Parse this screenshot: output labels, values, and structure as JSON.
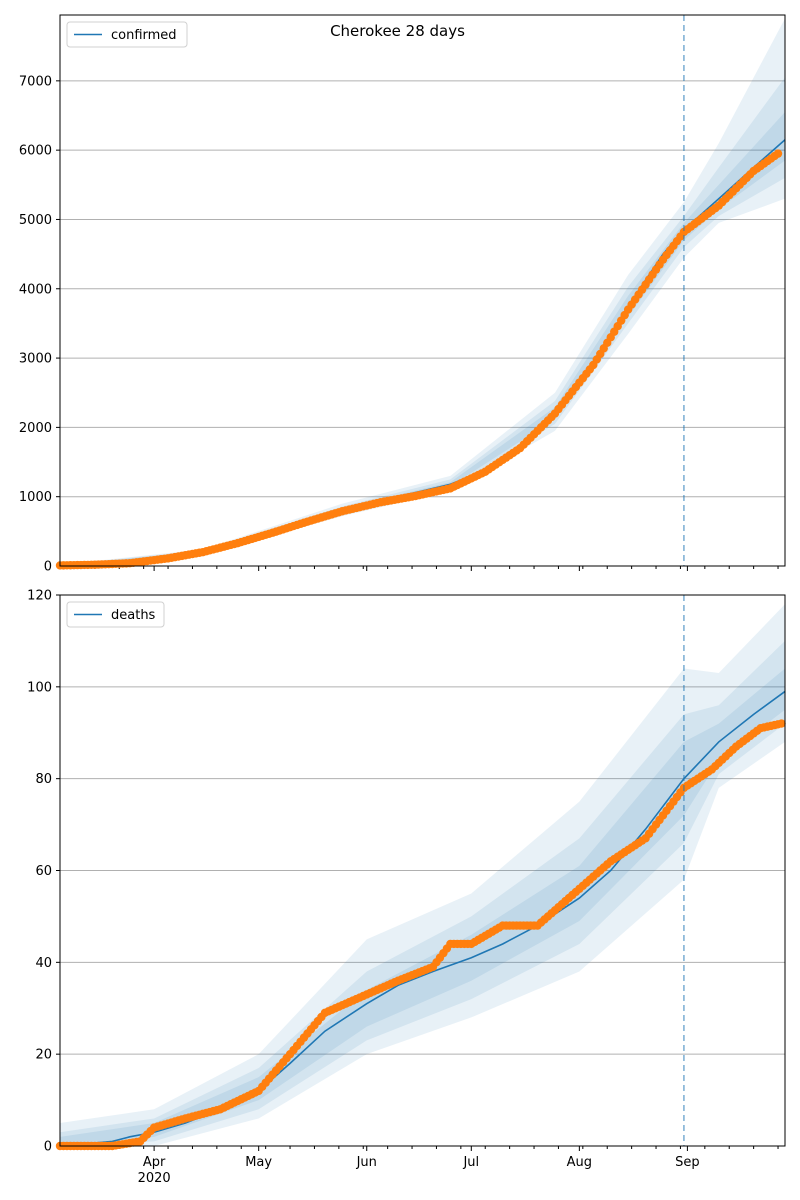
{
  "chart_data": [
    {
      "type": "line",
      "title": "Cherokee 28 days",
      "legend": {
        "label": "confirmed",
        "placement": "upper-left"
      },
      "ylim": [
        0,
        7950
      ],
      "yticks": [
        0,
        1000,
        2000,
        3000,
        4000,
        5000,
        6000,
        7000
      ],
      "xlim": [
        "2020-03-05",
        "2020-09-29"
      ],
      "xtick_labels": [],
      "forecast_start": "2020-08-31",
      "grid": "y",
      "colors": {
        "line": "#1f77b4",
        "observed": "#ff7f0e",
        "band": "#1f77b4"
      },
      "series": [
        {
          "name": "confirmed",
          "kind": "model",
          "x": [
            "2020-03-05",
            "2020-03-15",
            "2020-03-25",
            "2020-04-05",
            "2020-04-15",
            "2020-04-25",
            "2020-05-05",
            "2020-05-15",
            "2020-05-25",
            "2020-06-05",
            "2020-06-15",
            "2020-06-25",
            "2020-07-05",
            "2020-07-15",
            "2020-07-25",
            "2020-08-05",
            "2020-08-15",
            "2020-08-25",
            "2020-08-31",
            "2020-09-10",
            "2020-09-20",
            "2020-09-29"
          ],
          "y": [
            5,
            15,
            40,
            110,
            200,
            320,
            470,
            640,
            810,
            950,
            1060,
            1180,
            1380,
            1720,
            2200,
            2950,
            3750,
            4500,
            4850,
            5300,
            5750,
            6150
          ]
        },
        {
          "name": "observed",
          "kind": "points",
          "x": [
            "2020-03-05",
            "2020-03-15",
            "2020-03-25",
            "2020-04-05",
            "2020-04-15",
            "2020-04-25",
            "2020-05-05",
            "2020-05-15",
            "2020-05-25",
            "2020-06-05",
            "2020-06-15",
            "2020-06-25",
            "2020-07-05",
            "2020-07-15",
            "2020-07-25",
            "2020-08-05",
            "2020-08-15",
            "2020-08-25",
            "2020-08-31",
            "2020-09-10",
            "2020-09-20",
            "2020-09-27"
          ],
          "y": [
            8,
            18,
            40,
            110,
            200,
            330,
            480,
            640,
            790,
            920,
            1010,
            1120,
            1360,
            1700,
            2200,
            2900,
            3700,
            4420,
            4820,
            5200,
            5700,
            5950
          ]
        }
      ],
      "bands": [
        {
          "x": [
            "2020-03-05",
            "2020-04-15",
            "2020-05-25",
            "2020-06-25",
            "2020-07-25",
            "2020-08-15",
            "2020-08-31",
            "2020-09-10",
            "2020-09-29"
          ],
          "lower": [
            0,
            160,
            720,
            1080,
            1950,
            3350,
            4450,
            4950,
            5300
          ],
          "upper": [
            20,
            240,
            900,
            1300,
            2500,
            4200,
            5250,
            6100,
            7900
          ]
        },
        {
          "x": [
            "2020-03-05",
            "2020-04-15",
            "2020-05-25",
            "2020-06-25",
            "2020-07-25",
            "2020-08-15",
            "2020-08-31",
            "2020-09-10",
            "2020-09-29"
          ],
          "lower": [
            2,
            175,
            760,
            1120,
            2050,
            3500,
            4600,
            5050,
            5600
          ],
          "upper": [
            14,
            225,
            860,
            1250,
            2380,
            4030,
            5050,
            5750,
            7050
          ]
        },
        {
          "x": [
            "2020-03-05",
            "2020-04-15",
            "2020-05-25",
            "2020-06-25",
            "2020-07-25",
            "2020-08-15",
            "2020-08-31",
            "2020-09-10",
            "2020-09-29"
          ],
          "lower": [
            4,
            185,
            785,
            1150,
            2120,
            3600,
            4700,
            5150,
            5850
          ],
          "upper": [
            9,
            215,
            835,
            1210,
            2290,
            3900,
            4950,
            5500,
            6550
          ]
        }
      ]
    },
    {
      "type": "line",
      "title": "",
      "legend": {
        "label": "deaths",
        "placement": "upper-left"
      },
      "ylim": [
        0,
        120
      ],
      "yticks": [
        0,
        20,
        40,
        60,
        80,
        100,
        120
      ],
      "xlim": [
        "2020-03-05",
        "2020-09-29"
      ],
      "xtick_labels": [
        {
          "date": "2020-04-01",
          "label": "Apr",
          "sublabel": "2020"
        },
        {
          "date": "2020-05-01",
          "label": "May"
        },
        {
          "date": "2020-06-01",
          "label": "Jun"
        },
        {
          "date": "2020-07-01",
          "label": "Jul"
        },
        {
          "date": "2020-08-01",
          "label": "Aug"
        },
        {
          "date": "2020-09-01",
          "label": "Sep"
        }
      ],
      "forecast_start": "2020-08-31",
      "grid": "y",
      "colors": {
        "line": "#1f77b4",
        "observed": "#ff7f0e",
        "band": "#1f77b4"
      },
      "series": [
        {
          "name": "deaths",
          "kind": "model",
          "x": [
            "2020-03-05",
            "2020-03-20",
            "2020-03-25",
            "2020-04-01",
            "2020-04-10",
            "2020-04-20",
            "2020-05-01",
            "2020-05-10",
            "2020-05-20",
            "2020-06-01",
            "2020-06-10",
            "2020-06-20",
            "2020-07-01",
            "2020-07-10",
            "2020-07-20",
            "2020-08-01",
            "2020-08-10",
            "2020-08-20",
            "2020-08-31",
            "2020-09-10",
            "2020-09-20",
            "2020-09-29"
          ],
          "y": [
            0,
            1,
            2,
            3,
            5,
            8,
            12,
            18,
            25,
            31,
            35,
            38,
            41,
            44,
            48,
            54,
            60,
            69,
            80,
            88,
            94,
            99
          ]
        },
        {
          "name": "observed",
          "kind": "points",
          "x": [
            "2020-03-05",
            "2020-03-20",
            "2020-03-28",
            "2020-04-01",
            "2020-04-10",
            "2020-04-20",
            "2020-05-01",
            "2020-05-10",
            "2020-05-20",
            "2020-06-01",
            "2020-06-10",
            "2020-06-20",
            "2020-06-25",
            "2020-07-01",
            "2020-07-10",
            "2020-07-20",
            "2020-08-01",
            "2020-08-10",
            "2020-08-20",
            "2020-08-25",
            "2020-08-31",
            "2020-09-08",
            "2020-09-15",
            "2020-09-22",
            "2020-09-28"
          ],
          "y": [
            0,
            0,
            1,
            4,
            6,
            8,
            12,
            20,
            29,
            33,
            36,
            39,
            44,
            44,
            48,
            48,
            56,
            62,
            67,
            72,
            78,
            82,
            87,
            91,
            92
          ]
        }
      ],
      "bands": [
        {
          "x": [
            "2020-03-05",
            "2020-04-01",
            "2020-05-01",
            "2020-06-01",
            "2020-07-01",
            "2020-08-01",
            "2020-08-31",
            "2020-09-10",
            "2020-09-29"
          ],
          "lower": [
            0,
            0,
            6,
            20,
            28,
            38,
            58,
            78,
            88
          ],
          "upper": [
            5,
            8,
            20,
            45,
            55,
            75,
            104,
            103,
            118
          ]
        },
        {
          "x": [
            "2020-03-05",
            "2020-04-01",
            "2020-05-01",
            "2020-06-01",
            "2020-07-01",
            "2020-08-01",
            "2020-08-31",
            "2020-09-10",
            "2020-09-29"
          ],
          "lower": [
            0,
            1,
            8,
            23,
            32,
            44,
            66,
            81,
            92
          ],
          "upper": [
            3,
            6,
            17,
            38,
            50,
            67,
            94,
            96,
            110
          ]
        },
        {
          "x": [
            "2020-03-05",
            "2020-04-01",
            "2020-05-01",
            "2020-06-01",
            "2020-07-01",
            "2020-08-01",
            "2020-08-31",
            "2020-09-10",
            "2020-09-29"
          ],
          "lower": [
            0,
            2,
            10,
            26,
            36,
            49,
            72,
            84,
            95
          ],
          "upper": [
            2,
            5,
            15,
            34,
            46,
            61,
            88,
            92,
            104
          ]
        }
      ]
    }
  ]
}
